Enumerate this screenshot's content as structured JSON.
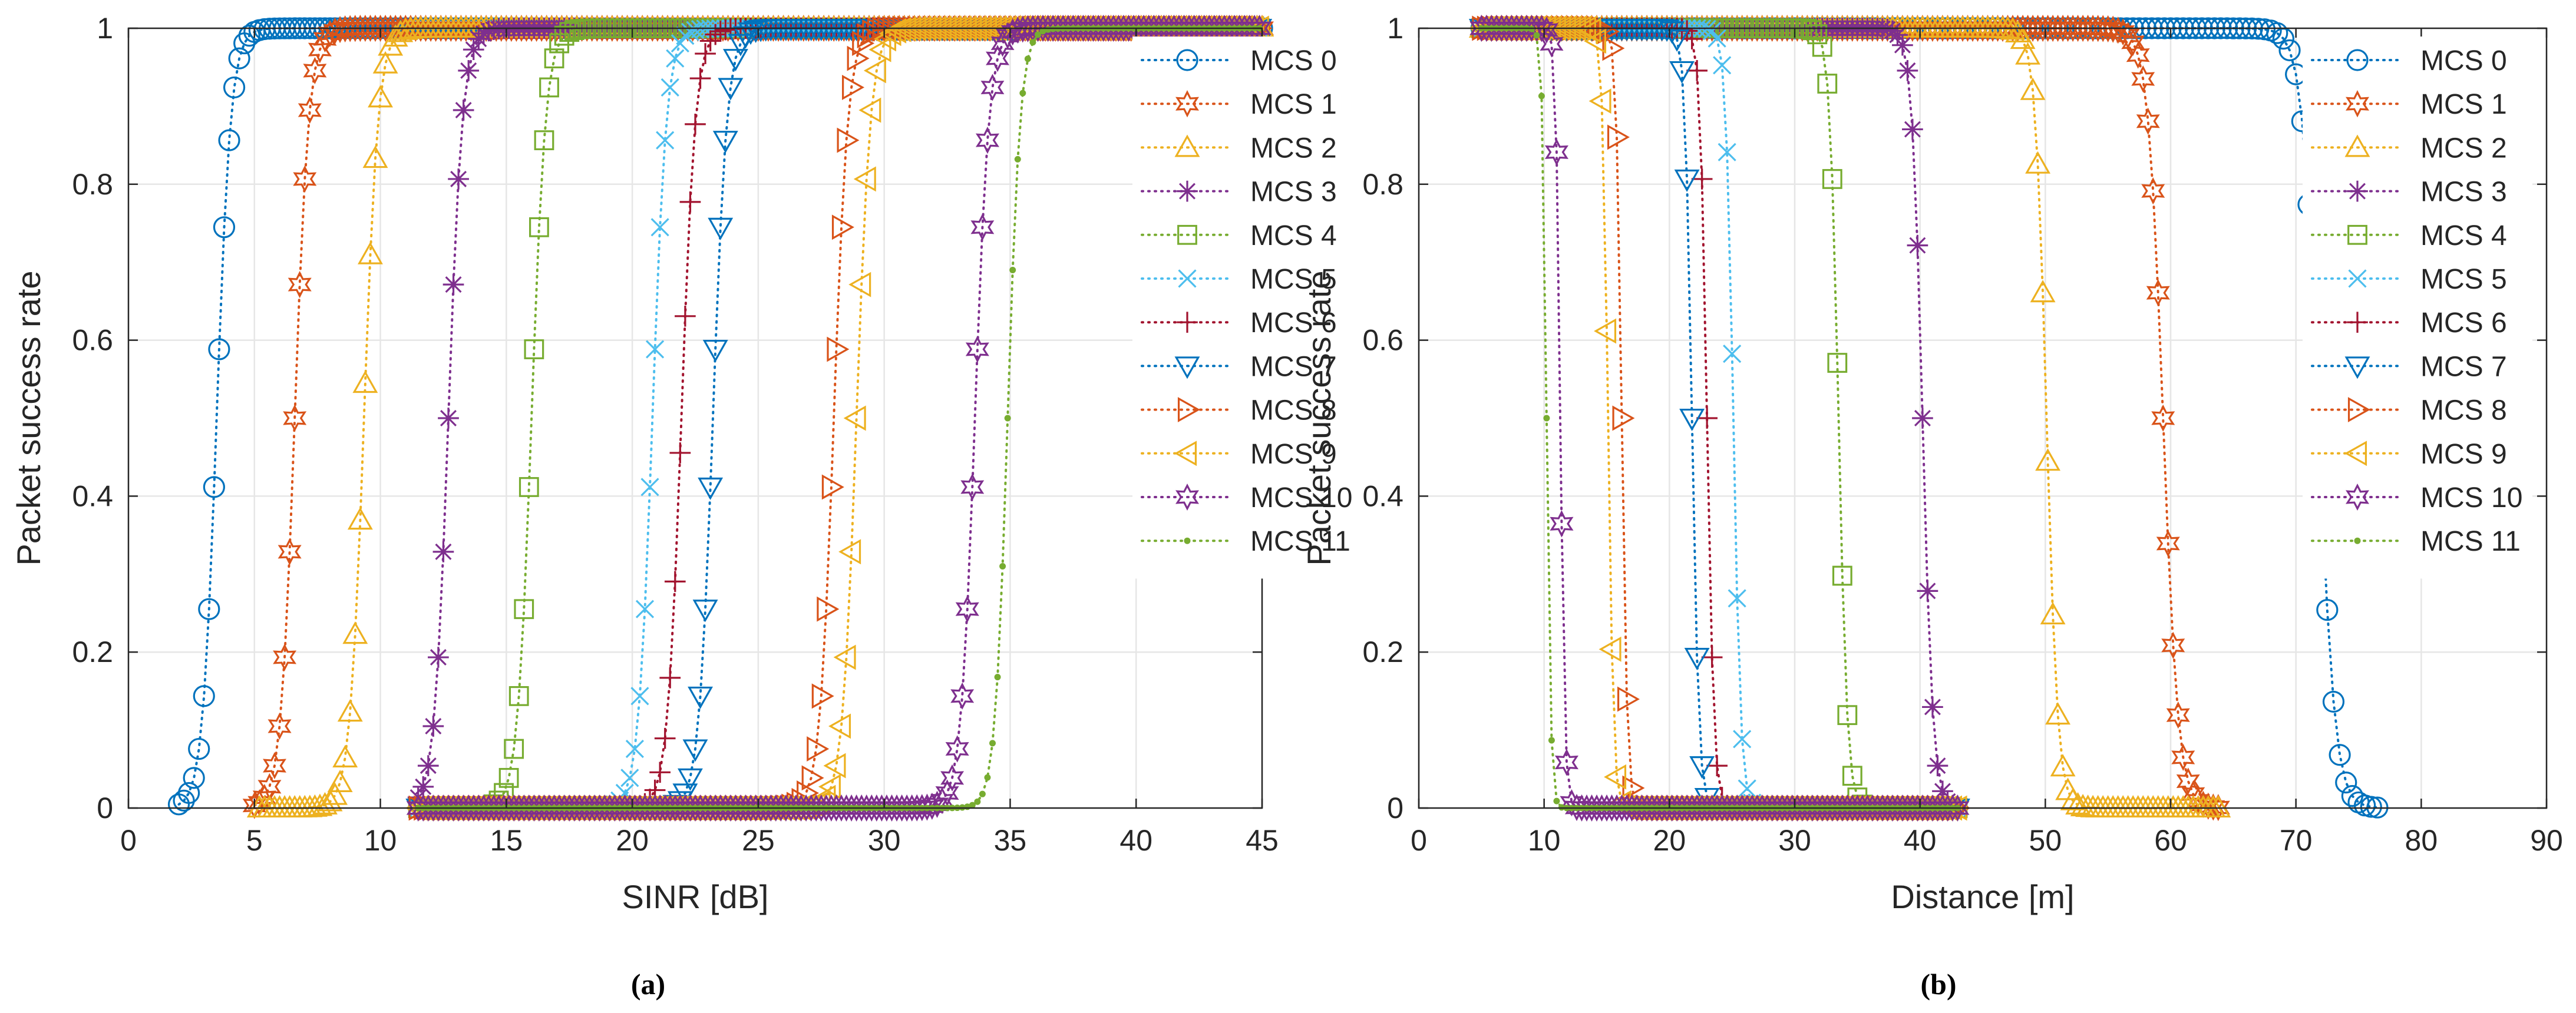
{
  "figure": {
    "captions": [
      "(a)",
      "(b)"
    ]
  },
  "chart_data": [
    {
      "type": "line",
      "panel": "(a)",
      "title": "",
      "xlabel": "SINR [dB]",
      "ylabel": "Packet success rate",
      "xlim": [
        0,
        45
      ],
      "ylim": [
        0,
        1
      ],
      "xticks": [
        0,
        5,
        10,
        15,
        20,
        25,
        30,
        35,
        40,
        45
      ],
      "yticks": [
        0,
        0.2,
        0.4,
        0.6,
        0.8,
        1
      ],
      "grid": true,
      "legend_position": "top-right",
      "curve_model": "sigmoid_increasing",
      "series": [
        {
          "name": "MCS 0",
          "marker": "circle",
          "color": "#0072BD",
          "x_start": 2.0,
          "x_end": 45,
          "step": 0.2,
          "midpoint": 3.5,
          "width": 0.28
        },
        {
          "name": "MCS 1",
          "marker": "hexagram",
          "color": "#D95319",
          "x_start": 5.0,
          "x_end": 45,
          "step": 0.2,
          "midpoint": 6.6,
          "width": 0.28
        },
        {
          "name": "MCS 2",
          "marker": "triangle-up",
          "color": "#EDB120",
          "x_start": 5.2,
          "x_end": 45,
          "step": 0.2,
          "midpoint": 9.35,
          "width": 0.28
        },
        {
          "name": "MCS 3",
          "marker": "asterisk",
          "color": "#7E2F8E",
          "x_start": 11.5,
          "x_end": 45,
          "step": 0.2,
          "midpoint": 12.7,
          "width": 0.28
        },
        {
          "name": "MCS 4",
          "marker": "square",
          "color": "#77AC30",
          "x_start": 11.5,
          "x_end": 45,
          "step": 0.2,
          "midpoint": 16.0,
          "width": 0.28
        },
        {
          "name": "MCS 5",
          "marker": "x",
          "color": "#4DBEEE",
          "x_start": 11.5,
          "x_end": 45,
          "step": 0.2,
          "midpoint": 20.8,
          "width": 0.28
        },
        {
          "name": "MCS 6",
          "marker": "plus",
          "color": "#A2142F",
          "x_start": 11.5,
          "x_end": 45,
          "step": 0.2,
          "midpoint": 21.95,
          "width": 0.28
        },
        {
          "name": "MCS 7",
          "marker": "triangle-down",
          "color": "#0072BD",
          "x_start": 11.5,
          "x_end": 45,
          "step": 0.2,
          "midpoint": 23.2,
          "width": 0.28
        },
        {
          "name": "MCS 8",
          "marker": "triangle-right",
          "color": "#D95319",
          "x_start": 11.5,
          "x_end": 45,
          "step": 0.2,
          "midpoint": 28.0,
          "width": 0.28
        },
        {
          "name": "MCS 9",
          "marker": "triangle-left",
          "color": "#EDB120",
          "x_start": 11.5,
          "x_end": 45,
          "step": 0.2,
          "midpoint": 28.9,
          "width": 0.28
        },
        {
          "name": "MCS 10",
          "marker": "hexagram",
          "color": "#7E2F8E",
          "x_start": 11.5,
          "x_end": 45,
          "step": 0.2,
          "midpoint": 33.6,
          "width": 0.28
        },
        {
          "name": "MCS 11",
          "marker": "dot",
          "color": "#77AC30",
          "x_start": 11.5,
          "x_end": 45,
          "step": 0.2,
          "midpoint": 34.9,
          "width": 0.25
        }
      ]
    },
    {
      "type": "line",
      "panel": "(b)",
      "title": "",
      "xlabel": "Distance [m]",
      "ylabel": "Packet success rate",
      "xlim": [
        0,
        90
      ],
      "ylim": [
        0,
        1
      ],
      "xticks": [
        0,
        10,
        20,
        30,
        40,
        50,
        60,
        70,
        80,
        90
      ],
      "yticks": [
        0,
        0.2,
        0.4,
        0.6,
        0.8,
        1
      ],
      "grid": true,
      "legend_position": "top-right",
      "curve_model": "sigmoid_decreasing",
      "series": [
        {
          "name": "MCS 0",
          "marker": "circle",
          "color": "#0072BD",
          "x_start": 5.0,
          "x_end": 76.5,
          "step": 0.5,
          "midpoint": 71.8,
          "width": 0.65
        },
        {
          "name": "MCS 1",
          "marker": "hexagram",
          "color": "#D95319",
          "x_start": 5.0,
          "x_end": 64.0,
          "step": 0.4,
          "midpoint": 59.4,
          "width": 0.6
        },
        {
          "name": "MCS 2",
          "marker": "triangle-up",
          "color": "#EDB120",
          "x_start": 5.0,
          "x_end": 64.0,
          "step": 0.4,
          "midpoint": 50.1,
          "width": 0.45
        },
        {
          "name": "MCS 3",
          "marker": "asterisk",
          "color": "#7E2F8E",
          "x_start": 5.0,
          "x_end": 43.0,
          "step": 0.4,
          "midpoint": 40.2,
          "width": 0.42
        },
        {
          "name": "MCS 4",
          "marker": "square",
          "color": "#77AC30",
          "x_start": 5.0,
          "x_end": 43.0,
          "step": 0.4,
          "midpoint": 33.5,
          "width": 0.35
        },
        {
          "name": "MCS 5",
          "marker": "x",
          "color": "#4DBEEE",
          "x_start": 5.0,
          "x_end": 43.0,
          "step": 0.4,
          "midpoint": 25.1,
          "width": 0.3
        },
        {
          "name": "MCS 6",
          "marker": "plus",
          "color": "#A2142F",
          "x_start": 5.0,
          "x_end": 43.0,
          "step": 0.4,
          "midpoint": 23.0,
          "width": 0.28
        },
        {
          "name": "MCS 7",
          "marker": "triangle-down",
          "color": "#0072BD",
          "x_start": 5.0,
          "x_end": 43.0,
          "step": 0.4,
          "midpoint": 21.8,
          "width": 0.28
        },
        {
          "name": "MCS 8",
          "marker": "triangle-right",
          "color": "#D95319",
          "x_start": 5.0,
          "x_end": 43.0,
          "step": 0.4,
          "midpoint": 16.2,
          "width": 0.22
        },
        {
          "name": "MCS 9",
          "marker": "triangle-left",
          "color": "#EDB120",
          "x_start": 5.0,
          "x_end": 43.0,
          "step": 0.4,
          "midpoint": 15.1,
          "width": 0.22
        },
        {
          "name": "MCS 10",
          "marker": "hexagram",
          "color": "#7E2F8E",
          "x_start": 5.0,
          "x_end": 43.0,
          "step": 0.4,
          "midpoint": 11.3,
          "width": 0.18
        },
        {
          "name": "MCS 11",
          "marker": "dot",
          "color": "#77AC30",
          "x_start": 5.0,
          "x_end": 43.0,
          "step": 0.4,
          "midpoint": 10.2,
          "width": 0.17
        }
      ]
    }
  ]
}
